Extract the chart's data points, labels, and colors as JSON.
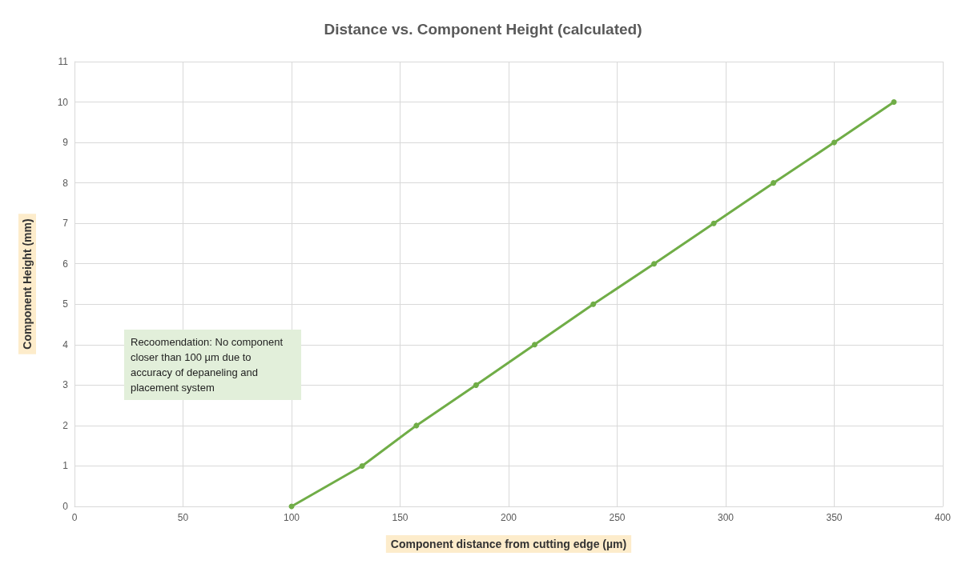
{
  "chart_data": {
    "type": "line",
    "title": "Distance vs. Component Height (calculated)",
    "xlabel": "Component distance from cutting edge (µm)",
    "ylabel": "Component Height (mm)",
    "annotations": [
      "Recoomendation: No component closer than 100 µm due to accuracy of depaneling and placement system"
    ],
    "series": [
      {
        "color": "#70ad47",
        "x": [
          100,
          132.5,
          157.5,
          185,
          212,
          239,
          267,
          294.5,
          322,
          350,
          377.5
        ],
        "values": [
          0,
          1,
          2,
          3,
          4,
          5,
          6,
          7,
          8,
          9,
          10
        ]
      }
    ],
    "xlim": [
      0,
      400
    ],
    "xticks": [
      0,
      50,
      100,
      150,
      200,
      250,
      300,
      350,
      400
    ],
    "ylim": [
      0,
      11
    ],
    "yticks": [
      0,
      1,
      2,
      3,
      4,
      5,
      6,
      7,
      8,
      9,
      10,
      11
    ],
    "grid": true,
    "marker": "circle",
    "line_style": "solid"
  }
}
